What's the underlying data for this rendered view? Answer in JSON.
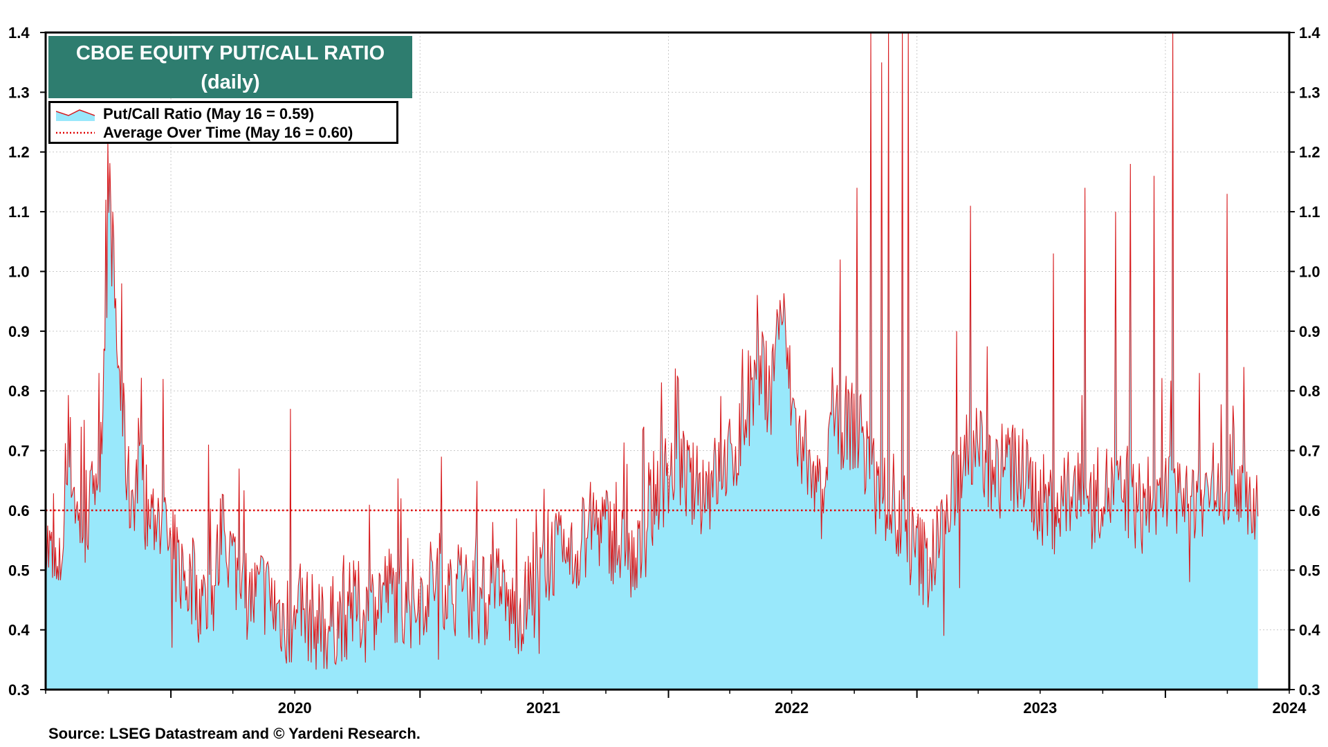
{
  "title": {
    "line1": "CBOE EQUITY PUT/CALL RATIO",
    "line2": "(daily)"
  },
  "legend": {
    "series_label": "Put/Call Ratio (May 16 = 0.59)",
    "average_label": "Average Over Time (May 16 = 0.60)"
  },
  "source": "Source: LSEG Datastream and © Yardeni Research.",
  "colors": {
    "title_bg": "#2e7d6f",
    "area_fill": "#99e8fb",
    "line": "#d7191c",
    "average": "#e00000"
  },
  "chart_data": {
    "type": "area",
    "title": "CBOE EQUITY PUT/CALL RATIO",
    "subtitle": "(daily)",
    "x_range": [
      "2019-07-01",
      "2024-07-01"
    ],
    "x_ticks": [
      "2020",
      "2021",
      "2022",
      "2023",
      "2024"
    ],
    "ylim": [
      0.3,
      1.4
    ],
    "y_ticks": [
      "0.3",
      "0.4",
      "0.5",
      "0.6",
      "0.7",
      "0.8",
      "0.9",
      "1.0",
      "1.1",
      "1.2",
      "1.3",
      "1.4"
    ],
    "grid": true,
    "average": 0.6,
    "series": [
      {
        "name": "Put/Call Ratio (May 16 = 0.59)",
        "points": [
          [
            "2019-07-01",
            0.55
          ],
          [
            "2019-07-20",
            0.47
          ],
          [
            "2019-08-05",
            0.7
          ],
          [
            "2019-08-20",
            0.56
          ],
          [
            "2019-09-05",
            0.6
          ],
          [
            "2019-09-20",
            0.72
          ],
          [
            "2019-10-03",
            1.12
          ],
          [
            "2019-10-15",
            0.85
          ],
          [
            "2019-11-01",
            0.62
          ],
          [
            "2019-11-15",
            0.66
          ],
          [
            "2019-12-01",
            0.58
          ],
          [
            "2019-12-15",
            0.6
          ],
          [
            "2020-01-01",
            0.53
          ],
          [
            "2020-01-15",
            0.5
          ],
          [
            "2020-02-01",
            0.47
          ],
          [
            "2020-02-15",
            0.45
          ],
          [
            "2020-03-01",
            0.44
          ],
          [
            "2020-03-15",
            0.56
          ],
          [
            "2020-04-01",
            0.52
          ],
          [
            "2020-04-15",
            0.47
          ],
          [
            "2020-05-01",
            0.45
          ],
          [
            "2020-05-15",
            0.47
          ],
          [
            "2020-06-01",
            0.44
          ],
          [
            "2020-06-15",
            0.42
          ],
          [
            "2020-07-01",
            0.4
          ],
          [
            "2020-07-15",
            0.43
          ],
          [
            "2020-08-01",
            0.41
          ],
          [
            "2020-08-15",
            0.4
          ],
          [
            "2020-09-01",
            0.42
          ],
          [
            "2020-09-15",
            0.43
          ],
          [
            "2020-10-01",
            0.44
          ],
          [
            "2020-10-15",
            0.42
          ],
          [
            "2020-11-01",
            0.46
          ],
          [
            "2020-11-15",
            0.47
          ],
          [
            "2020-12-01",
            0.45
          ],
          [
            "2020-12-15",
            0.44
          ],
          [
            "2021-01-01",
            0.45
          ],
          [
            "2021-01-15",
            0.48
          ],
          [
            "2021-02-01",
            0.49
          ],
          [
            "2021-02-15",
            0.46
          ],
          [
            "2021-03-01",
            0.47
          ],
          [
            "2021-03-15",
            0.46
          ],
          [
            "2021-04-01",
            0.45
          ],
          [
            "2021-04-15",
            0.44
          ],
          [
            "2021-05-01",
            0.45
          ],
          [
            "2021-05-15",
            0.43
          ],
          [
            "2021-06-01",
            0.44
          ],
          [
            "2021-06-15",
            0.45
          ],
          [
            "2021-07-01",
            0.5
          ],
          [
            "2021-07-15",
            0.53
          ],
          [
            "2021-08-01",
            0.51
          ],
          [
            "2021-08-15",
            0.52
          ],
          [
            "2021-09-01",
            0.56
          ],
          [
            "2021-09-15",
            0.58
          ],
          [
            "2021-10-01",
            0.57
          ],
          [
            "2021-10-15",
            0.55
          ],
          [
            "2021-11-01",
            0.52
          ],
          [
            "2021-11-15",
            0.5
          ],
          [
            "2021-12-01",
            0.58
          ],
          [
            "2021-12-15",
            0.64
          ],
          [
            "2022-01-01",
            0.66
          ],
          [
            "2022-01-15",
            0.68
          ],
          [
            "2022-02-01",
            0.64
          ],
          [
            "2022-02-15",
            0.63
          ],
          [
            "2022-03-01",
            0.64
          ],
          [
            "2022-03-15",
            0.66
          ],
          [
            "2022-04-01",
            0.68
          ],
          [
            "2022-04-15",
            0.72
          ],
          [
            "2022-05-01",
            0.78
          ],
          [
            "2022-05-15",
            0.83
          ],
          [
            "2022-06-01",
            0.8
          ],
          [
            "2022-06-15",
            0.95
          ],
          [
            "2022-07-01",
            0.78
          ],
          [
            "2022-07-15",
            0.7
          ],
          [
            "2022-08-01",
            0.62
          ],
          [
            "2022-08-15",
            0.61
          ],
          [
            "2022-09-01",
            0.72
          ],
          [
            "2022-09-15",
            0.75
          ],
          [
            "2022-10-01",
            0.74
          ],
          [
            "2022-10-15",
            0.7
          ],
          [
            "2022-11-01",
            0.64
          ],
          [
            "2022-11-15",
            0.62
          ],
          [
            "2022-12-01",
            0.58
          ],
          [
            "2022-12-15",
            0.55
          ],
          [
            "2023-01-01",
            0.53
          ],
          [
            "2023-01-15",
            0.51
          ],
          [
            "2023-02-01",
            0.54
          ],
          [
            "2023-02-15",
            0.58
          ],
          [
            "2023-03-01",
            0.66
          ],
          [
            "2023-03-15",
            0.72
          ],
          [
            "2023-04-01",
            0.7
          ],
          [
            "2023-04-15",
            0.67
          ],
          [
            "2023-05-01",
            0.66
          ],
          [
            "2023-05-15",
            0.68
          ],
          [
            "2023-06-01",
            0.66
          ],
          [
            "2023-06-15",
            0.64
          ],
          [
            "2023-07-01",
            0.62
          ],
          [
            "2023-07-15",
            0.61
          ],
          [
            "2023-08-01",
            0.6
          ],
          [
            "2023-08-15",
            0.63
          ],
          [
            "2023-09-01",
            0.62
          ],
          [
            "2023-09-15",
            0.61
          ],
          [
            "2023-10-01",
            0.64
          ],
          [
            "2023-10-15",
            0.63
          ],
          [
            "2023-11-01",
            0.62
          ],
          [
            "2023-11-15",
            0.61
          ],
          [
            "2023-12-01",
            0.6
          ],
          [
            "2023-12-15",
            0.62
          ],
          [
            "2024-01-01",
            0.63
          ],
          [
            "2024-01-15",
            0.62
          ],
          [
            "2024-02-01",
            0.61
          ],
          [
            "2024-02-15",
            0.63
          ],
          [
            "2024-03-01",
            0.62
          ],
          [
            "2024-03-15",
            0.64
          ],
          [
            "2024-04-01",
            0.65
          ],
          [
            "2024-04-15",
            0.66
          ],
          [
            "2024-05-01",
            0.63
          ],
          [
            "2024-05-16",
            0.59
          ]
        ],
        "spikes": [
          [
            "2019-10-01",
            1.22
          ],
          [
            "2019-09-28",
            1.12
          ],
          [
            "2019-10-08",
            1.1
          ],
          [
            "2019-10-20",
            0.98
          ],
          [
            "2019-08-22",
            0.74
          ],
          [
            "2019-12-20",
            0.82
          ],
          [
            "2020-02-25",
            0.71
          ],
          [
            "2020-04-10",
            0.67
          ],
          [
            "2020-06-25",
            0.77
          ],
          [
            "2021-02-01",
            0.69
          ],
          [
            "2021-11-25",
            0.74
          ],
          [
            "2022-01-15",
            0.82
          ],
          [
            "2022-04-20",
            0.87
          ],
          [
            "2022-05-20",
            0.89
          ],
          [
            "2022-09-10",
            1.02
          ],
          [
            "2022-10-05",
            1.14
          ],
          [
            "2022-10-25",
            1.4
          ],
          [
            "2022-11-10",
            1.35
          ],
          [
            "2022-11-20",
            1.4
          ],
          [
            "2022-12-10",
            1.4
          ],
          [
            "2022-12-20",
            1.4
          ],
          [
            "2023-03-20",
            1.11
          ],
          [
            "2023-03-01",
            0.9
          ],
          [
            "2023-07-20",
            1.03
          ],
          [
            "2023-09-05",
            1.14
          ],
          [
            "2023-10-20",
            1.1
          ],
          [
            "2023-11-10",
            1.18
          ],
          [
            "2023-12-15",
            1.16
          ],
          [
            "2024-01-12",
            1.4
          ],
          [
            "2024-02-20",
            0.83
          ],
          [
            "2024-04-01",
            1.13
          ],
          [
            "2024-04-25",
            0.84
          ]
        ],
        "lows": [
          [
            "2020-01-03",
            0.37
          ],
          [
            "2020-09-15",
            0.35
          ],
          [
            "2021-01-28",
            0.35
          ],
          [
            "2021-06-25",
            0.36
          ],
          [
            "2023-02-10",
            0.39
          ],
          [
            "2023-03-05",
            0.47
          ],
          [
            "2024-02-05",
            0.48
          ]
        ]
      }
    ]
  }
}
